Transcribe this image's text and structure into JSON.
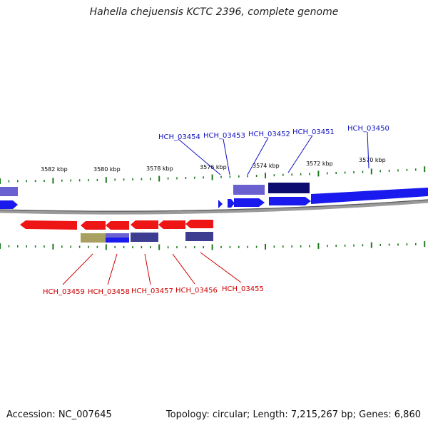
{
  "title": "Hahella chejuensis KCTC 2396, complete genome",
  "footer": {
    "accession": "Accession: NC_007645",
    "summary": "Topology: circular; Length: 7,215,267 bp; Genes: 6,860"
  },
  "colors": {
    "forward_label": "#1010c0",
    "reverse_label": "#cc0000",
    "forward_gene": "#1a1aee",
    "reverse_gene": "#ee1515",
    "backbone": "#808080",
    "tick": "#1e7a1e"
  },
  "scale_labels": [
    "3582 kbp",
    "3580 kbp",
    "3578 kbp",
    "3576 kbp",
    "3574 kbp",
    "3572 kbp",
    "3570 kbp"
  ],
  "forward_genes": [
    "HCH_03454",
    "HCH_03453",
    "HCH_03452",
    "HCH_03451",
    "HCH_03450"
  ],
  "reverse_genes": [
    "HCH_03459",
    "HCH_03458",
    "HCH_03457",
    "HCH_03456",
    "HCH_03455"
  ]
}
